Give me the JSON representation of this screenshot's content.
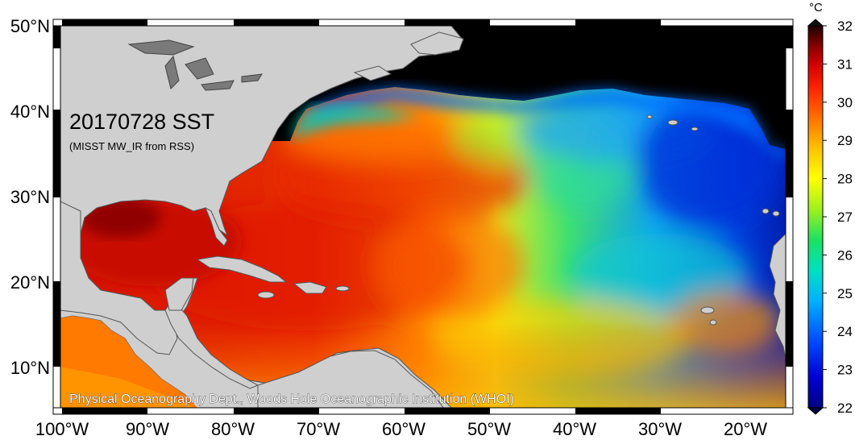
{
  "title": "20170728 SST",
  "subtitle": "(MISST MW_IR from RSS)",
  "credit": "Physical Oceanography Dept., Woods Hole Oceanographic Institution (WHOI)",
  "lat_labels": [
    "50°N",
    "40°N",
    "30°N",
    "20°N",
    "10°N"
  ],
  "lon_labels": [
    "100°W",
    "90°W",
    "80°W",
    "70°W",
    "60°W",
    "50°W",
    "40°W",
    "30°W",
    "20°W"
  ],
  "colorbar": {
    "unit": "°C",
    "min": 22,
    "max": 32,
    "ticks": [
      "32",
      "31",
      "30",
      "29",
      "28",
      "27",
      "26",
      "25",
      "24",
      "23",
      "22"
    ]
  },
  "colors": {
    "land": "#cfcfcf",
    "lake": "#7a7a7a",
    "no_data": "#000000",
    "frame": "#000000"
  },
  "extent": {
    "lon_west": -100,
    "lon_east": -15,
    "lat_south": 5,
    "lat_north": 51
  }
}
